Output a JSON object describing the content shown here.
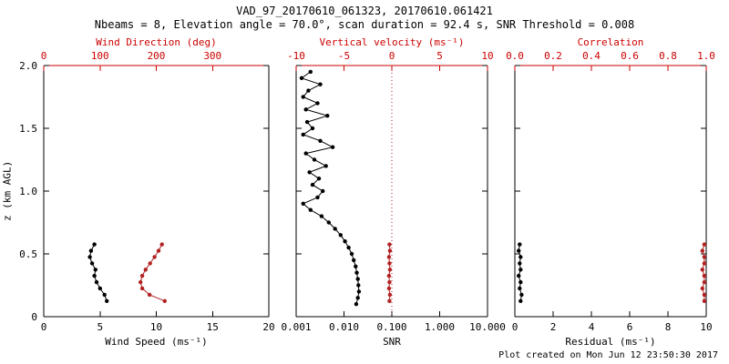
{
  "header": {
    "title": "VAD_97_20170610_061323, 20170610.061421",
    "subtitle": "Nbeams = 8, Elevation angle = 70.0°, scan duration = 92.4 s, SNR Threshold = 0.008"
  },
  "footer": {
    "created": "Plot created on Mon Jun 12 23:50:30 2017"
  },
  "colors": {
    "background": "#ffffff",
    "axis_black": "#000000",
    "axis_red": "#cc0000",
    "series_black": "#000000",
    "series_red": "#b22222"
  },
  "y_axis": {
    "label": "z (km AGL)",
    "range": [
      0,
      2
    ],
    "ticks": [
      0,
      0.5,
      1,
      1.5,
      2
    ],
    "tick_labels": [
      "0",
      "0.5",
      "1.0",
      "1.5",
      "2.0"
    ]
  },
  "chart_data": [
    {
      "name": "wind",
      "type": "scatter",
      "bottom_axis": {
        "label": "Wind Speed (ms⁻¹)",
        "scale": "linear",
        "range": [
          0,
          20
        ],
        "ticks": [
          0,
          5,
          10,
          15,
          20
        ],
        "tick_labels": [
          "0",
          "5",
          "10",
          "15",
          "20"
        ]
      },
      "top_axis": {
        "label": "Wind Direction (deg)",
        "scale": "linear",
        "range": [
          0,
          400
        ],
        "ticks": [
          0,
          100,
          200,
          300
        ],
        "tick_labels": [
          "0",
          "100",
          "200",
          "300"
        ]
      },
      "reference_lines": [],
      "series": [
        {
          "name": "wind_speed",
          "axis": "bottom",
          "color_key": "series_black",
          "z": [
            0.575,
            0.525,
            0.475,
            0.425,
            0.375,
            0.325,
            0.275,
            0.225,
            0.175,
            0.125
          ],
          "values": [
            4.5,
            4.2,
            4.1,
            4.3,
            4.6,
            4.5,
            4.7,
            5.0,
            5.4,
            5.6
          ]
        },
        {
          "name": "wind_direction",
          "axis": "top",
          "color_key": "series_red",
          "z": [
            0.575,
            0.525,
            0.475,
            0.425,
            0.375,
            0.325,
            0.275,
            0.225,
            0.175,
            0.125
          ],
          "values": [
            210,
            204,
            197,
            189,
            181,
            175,
            172,
            175,
            188,
            215
          ]
        }
      ]
    },
    {
      "name": "snr",
      "type": "scatter",
      "bottom_axis": {
        "label": "SNR",
        "scale": "log",
        "range": [
          0.001,
          10
        ],
        "ticks": [
          0.001,
          0.01,
          0.1,
          1,
          10
        ],
        "tick_labels": [
          "0.001",
          "0.010",
          "0.100",
          "1.000",
          "10.000"
        ]
      },
      "top_axis": {
        "label": "Vertical velocity (ms⁻¹)",
        "scale": "linear",
        "range": [
          -10,
          10
        ],
        "ticks": [
          -10,
          -5,
          0,
          5,
          10
        ],
        "tick_labels": [
          "-10",
          "-5",
          "0",
          "5",
          "10"
        ]
      },
      "reference_lines": [
        {
          "name": "zero-velocity-line",
          "axis": "top",
          "value": 0,
          "style": "dotted",
          "color_key": "series_red"
        }
      ],
      "series": [
        {
          "name": "snr_profile",
          "axis": "bottom",
          "color_key": "series_black",
          "z": [
            1.95,
            1.9,
            1.85,
            1.8,
            1.75,
            1.7,
            1.65,
            1.6,
            1.55,
            1.5,
            1.45,
            1.4,
            1.35,
            1.3,
            1.25,
            1.2,
            1.15,
            1.1,
            1.05,
            1.0,
            0.95,
            0.9,
            0.85,
            0.8,
            0.75,
            0.7,
            0.65,
            0.6,
            0.55,
            0.5,
            0.45,
            0.4,
            0.35,
            0.3,
            0.25,
            0.2,
            0.15,
            0.1
          ],
          "values": [
            0.002,
            0.0013,
            0.0032,
            0.0018,
            0.0014,
            0.0028,
            0.0016,
            0.0045,
            0.0017,
            0.0022,
            0.0014,
            0.0032,
            0.0058,
            0.0016,
            0.0024,
            0.0042,
            0.0019,
            0.003,
            0.0022,
            0.0036,
            0.0028,
            0.0014,
            0.002,
            0.0034,
            0.0048,
            0.0065,
            0.0085,
            0.0105,
            0.0125,
            0.0145,
            0.016,
            0.0175,
            0.0185,
            0.0195,
            0.02,
            0.0205,
            0.0195,
            0.018
          ]
        },
        {
          "name": "vertical_velocity",
          "axis": "top",
          "color_key": "series_red",
          "z": [
            0.575,
            0.525,
            0.475,
            0.425,
            0.375,
            0.325,
            0.275,
            0.225,
            0.175,
            0.125
          ],
          "values": [
            -0.25,
            -0.2,
            -0.3,
            -0.25,
            -0.2,
            -0.3,
            -0.25,
            -0.3,
            -0.2,
            -0.25
          ]
        }
      ]
    },
    {
      "name": "residual",
      "type": "scatter",
      "bottom_axis": {
        "label": "Residual (ms⁻¹)",
        "scale": "linear",
        "range": [
          0,
          10
        ],
        "ticks": [
          0,
          2,
          4,
          6,
          8,
          10
        ],
        "tick_labels": [
          "0",
          "2",
          "4",
          "6",
          "8",
          "10"
        ]
      },
      "top_axis": {
        "label": "Correlation",
        "scale": "linear",
        "range": [
          0,
          1
        ],
        "ticks": [
          0,
          0.2,
          0.4,
          0.6,
          0.8,
          1
        ],
        "tick_labels": [
          "0.0",
          "0.2",
          "0.4",
          "0.6",
          "0.8",
          "1.0"
        ]
      },
      "reference_lines": [],
      "series": [
        {
          "name": "residual",
          "axis": "bottom",
          "color_key": "series_black",
          "z": [
            0.575,
            0.525,
            0.475,
            0.425,
            0.375,
            0.325,
            0.275,
            0.225,
            0.175,
            0.125
          ],
          "values": [
            0.25,
            0.2,
            0.3,
            0.25,
            0.3,
            0.2,
            0.3,
            0.25,
            0.35,
            0.3
          ]
        },
        {
          "name": "correlation",
          "axis": "top",
          "color_key": "series_red",
          "z": [
            0.575,
            0.525,
            0.475,
            0.425,
            0.375,
            0.325,
            0.275,
            0.225,
            0.175,
            0.125
          ],
          "values": [
            0.99,
            0.98,
            0.99,
            0.99,
            0.98,
            0.99,
            0.99,
            0.98,
            0.99,
            0.99
          ]
        }
      ]
    }
  ]
}
